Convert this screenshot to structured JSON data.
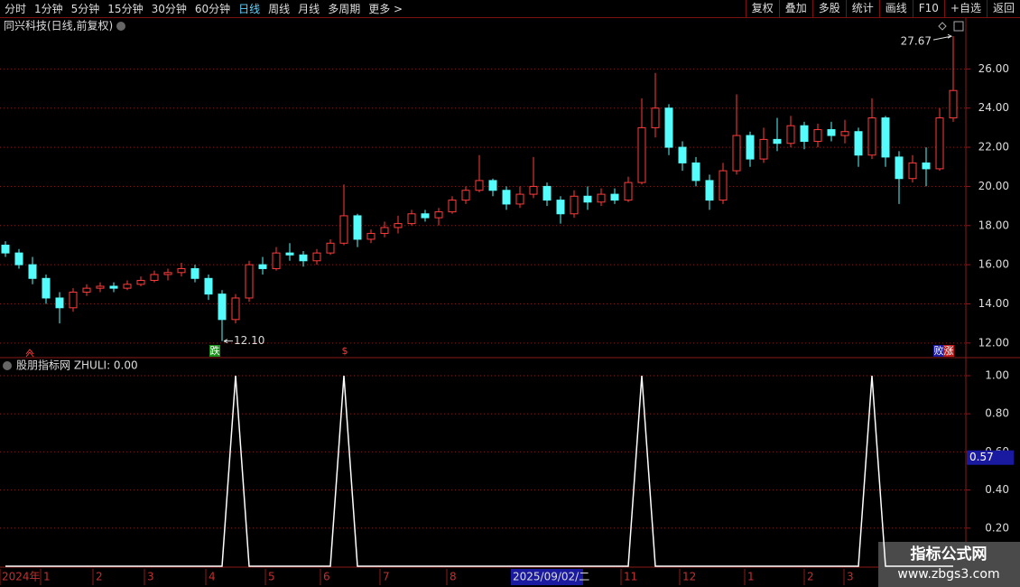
{
  "toolbar": {
    "periods": [
      "分时",
      "1分钟",
      "5分钟",
      "15分钟",
      "30分钟",
      "60分钟",
      "日线",
      "周线",
      "月线",
      "多周期",
      "更多 >"
    ],
    "actions": [
      "复权",
      "叠加",
      "多股",
      "统计",
      "画线",
      "F10",
      "+自选",
      "返回"
    ]
  },
  "chart_data": [
    {
      "type": "candlestick",
      "title": "同兴科技(日线,前复权)",
      "open": [
        17.0,
        16.6,
        16.0,
        15.3,
        14.3,
        13.8,
        14.6,
        14.8,
        14.9,
        14.8,
        15.0,
        15.2,
        15.5,
        15.6,
        15.8,
        15.3,
        14.5,
        13.2,
        14.3,
        16.0,
        15.8,
        16.6,
        16.5,
        16.2,
        16.6,
        17.1,
        18.5,
        17.3,
        17.6,
        17.9,
        18.1,
        18.6,
        18.4,
        18.7,
        19.3,
        19.8,
        20.3,
        19.8,
        19.1,
        19.6,
        20.0,
        19.3,
        18.6,
        19.5,
        19.2,
        19.6,
        19.3,
        20.2,
        23.0,
        24.0,
        22.0,
        21.2,
        20.3,
        19.3,
        20.8,
        22.6,
        21.4,
        22.4,
        22.2,
        23.1,
        22.3,
        22.9,
        22.6,
        22.8,
        21.6,
        23.5,
        21.5,
        20.4,
        21.2,
        20.9,
        23.5
      ],
      "high": [
        17.2,
        16.8,
        16.4,
        15.5,
        14.6,
        14.8,
        15.0,
        15.1,
        15.1,
        15.2,
        15.4,
        15.7,
        15.8,
        16.1,
        16.0,
        15.5,
        14.7,
        14.5,
        16.2,
        16.4,
        16.9,
        17.1,
        16.7,
        16.8,
        17.3,
        20.1,
        18.6,
        17.8,
        18.2,
        18.5,
        18.8,
        18.8,
        18.9,
        19.5,
        20.0,
        21.6,
        20.4,
        20.0,
        20.0,
        21.5,
        20.2,
        19.5,
        19.8,
        20.0,
        19.9,
        19.9,
        20.5,
        24.5,
        25.8,
        24.2,
        22.3,
        21.5,
        20.6,
        21.2,
        24.7,
        22.8,
        23.0,
        23.5,
        23.6,
        23.3,
        23.2,
        23.3,
        23.4,
        23.0,
        24.5,
        23.6,
        21.8,
        21.6,
        22.0,
        24.0,
        27.67
      ],
      "low": [
        16.4,
        15.8,
        15.0,
        14.0,
        13.0,
        13.6,
        14.4,
        14.6,
        14.6,
        14.7,
        14.9,
        15.1,
        15.2,
        15.4,
        15.1,
        14.2,
        12.1,
        13.0,
        14.1,
        15.5,
        15.7,
        16.2,
        15.9,
        16.0,
        16.5,
        17.0,
        16.9,
        17.1,
        17.4,
        17.6,
        18.0,
        18.2,
        18.0,
        18.6,
        19.1,
        19.7,
        19.5,
        18.8,
        18.9,
        19.4,
        19.0,
        18.1,
        18.4,
        18.8,
        19.0,
        19.1,
        19.2,
        20.1,
        22.5,
        21.6,
        20.8,
        20.0,
        18.8,
        19.1,
        20.6,
        21.0,
        21.2,
        21.8,
        22.0,
        21.9,
        22.0,
        22.3,
        22.2,
        21.0,
        21.4,
        21.0,
        19.1,
        20.2,
        20.0,
        20.8,
        23.3
      ],
      "close": [
        16.6,
        16.0,
        15.3,
        14.3,
        13.8,
        14.6,
        14.8,
        14.9,
        14.8,
        15.0,
        15.2,
        15.5,
        15.6,
        15.8,
        15.3,
        14.5,
        13.2,
        14.3,
        16.0,
        15.8,
        16.6,
        16.5,
        16.2,
        16.6,
        17.1,
        18.5,
        17.3,
        17.6,
        17.9,
        18.1,
        18.6,
        18.4,
        18.7,
        19.3,
        19.8,
        20.3,
        19.8,
        19.1,
        19.6,
        20.0,
        19.3,
        18.6,
        19.5,
        19.2,
        19.6,
        19.3,
        20.2,
        23.0,
        24.0,
        22.0,
        21.2,
        20.3,
        19.3,
        20.8,
        22.6,
        21.4,
        22.4,
        22.2,
        23.1,
        22.3,
        22.9,
        22.6,
        22.8,
        21.6,
        23.5,
        21.5,
        20.4,
        21.2,
        20.9,
        23.5,
        24.9
      ],
      "up_color": "#ff3c3c",
      "down_color": "#54fcfc",
      "ylim": [
        11.3,
        28.6
      ],
      "yticks": [
        {
          "value": 12,
          "label": "12.00"
        },
        {
          "value": 14,
          "label": "14.00"
        },
        {
          "value": 16,
          "label": "16.00"
        },
        {
          "value": 18,
          "label": "18.00"
        },
        {
          "value": 20,
          "label": "20.00"
        },
        {
          "value": 22,
          "label": "22.00"
        },
        {
          "value": 24,
          "label": "24.00"
        },
        {
          "value": 26,
          "label": "26.00"
        }
      ],
      "grid": true,
      "annotations": [
        {
          "value": 27.67,
          "label": "27.67"
        },
        {
          "value": 12.1,
          "label": "12.10"
        }
      ],
      "signals": [
        "跌",
        "$",
        "败",
        "涨"
      ]
    },
    {
      "type": "line",
      "title": "股朋指标网  ZHULI: 0.00",
      "color": "#ffffff",
      "values": [
        0,
        0,
        0,
        0,
        0,
        0,
        0,
        0,
        0,
        0,
        0,
        0,
        0,
        0,
        0,
        0,
        0,
        1,
        0,
        0,
        0,
        0,
        0,
        0,
        0,
        1,
        0,
        0,
        0,
        0,
        0,
        0,
        0,
        0,
        0,
        0,
        0,
        0,
        0,
        0,
        0,
        0,
        0,
        0,
        0,
        0,
        0,
        1,
        0,
        0,
        0,
        0,
        0,
        0,
        0,
        0,
        0,
        0,
        0,
        0,
        0,
        0,
        0,
        0,
        1,
        0,
        0,
        0,
        0,
        0,
        0
      ],
      "ylim": [
        0,
        1.09
      ],
      "yticks": [
        {
          "value": 0.2,
          "label": "0.20"
        },
        {
          "value": 0.4,
          "label": "0.40"
        },
        {
          "value": 0.6,
          "label": "0.60"
        },
        {
          "value": 0.8,
          "label": "0.80"
        },
        {
          "value": 1,
          "label": "1.00"
        }
      ],
      "grid": true,
      "cursor_value": {
        "value": 0.57,
        "label": "0.57"
      }
    }
  ],
  "time_axis": {
    "labels": [
      "2024年",
      "1",
      "2",
      "3",
      "4",
      "5",
      "6",
      "7",
      "8",
      "11",
      "12",
      "1",
      "2",
      "3"
    ],
    "cursor_date": "2025/09/02/二"
  },
  "watermark": {
    "title": "指标公式网",
    "url": "www.zbgs3.com"
  }
}
